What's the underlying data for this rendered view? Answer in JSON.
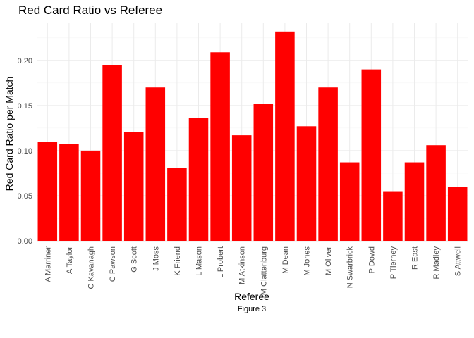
{
  "chart_data": {
    "type": "bar",
    "title": "Red Card Ratio vs Referee",
    "xlabel": "Referee",
    "ylabel": "Red Card Ratio per Match",
    "caption": "Figure 3",
    "categories": [
      "A Marriner",
      "A Taylor",
      "C Kavanagh",
      "C Pawson",
      "G Scott",
      "J Moss",
      "K Friend",
      "L Mason",
      "L Probert",
      "M Atkinson",
      "M Clattenburg",
      "M Dean",
      "M Jones",
      "M Oliver",
      "N Swarbrick",
      "P Dowd",
      "P Tierney",
      "R East",
      "R Madley",
      "S Attwell"
    ],
    "values": [
      0.11,
      0.107,
      0.1,
      0.195,
      0.121,
      0.17,
      0.081,
      0.136,
      0.209,
      0.117,
      0.152,
      0.232,
      0.127,
      0.17,
      0.087,
      0.19,
      0.055,
      0.087,
      0.106,
      0.06
    ],
    "yticks": [
      "0.00",
      "0.05",
      "0.10",
      "0.15",
      "0.20"
    ],
    "ylim": [
      0,
      0.242
    ],
    "bar_color": "#ff0000",
    "grid": true,
    "legend": "none"
  }
}
